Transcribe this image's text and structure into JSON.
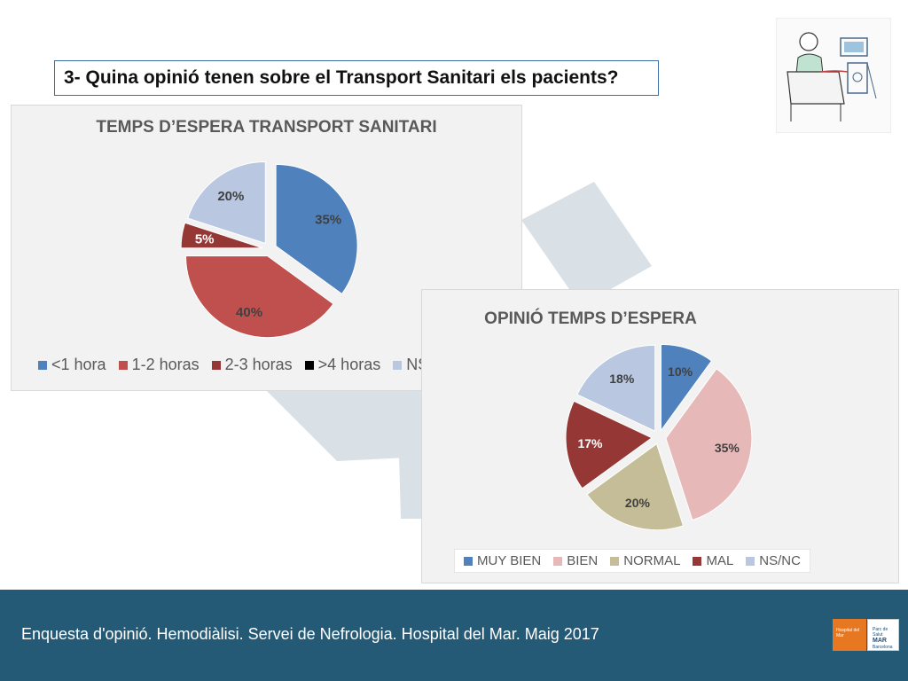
{
  "question": "3- Quina opinió tenen sobre el Transport Sanitari els pacients?",
  "footer_text": "Enquesta d'opinió. Hemodiàlisi. Servei de Nefrologia. Hospital del Mar.  Maig 2017",
  "logos": {
    "hospital": "Hospital del Mar",
    "parc_line1": "Parc de Salut",
    "parc_line2": "MAR",
    "parc_line3": "Barcelona"
  },
  "colors": {
    "footer_bg": "#255a77",
    "chart_bg": "#f2f2f2",
    "logo_orange": "#e87722"
  },
  "chart_data": [
    {
      "type": "pie",
      "title": "TEMPS D’ESPERA TRANSPORT SANITARI",
      "categories": [
        "<1 hora",
        "1-2 horas",
        "2-3 horas",
        ">4 horas",
        "NS/NC"
      ],
      "values": [
        35,
        40,
        5,
        0,
        20
      ],
      "labels": [
        "35%",
        "40%",
        "5%",
        "",
        "20%"
      ],
      "colors": [
        "#4f81bd",
        "#c0504d",
        "#953735",
        "#000000",
        "#b9c7e1"
      ],
      "exploded": true,
      "legend_position": "bottom"
    },
    {
      "type": "pie",
      "title": "OPINIÓ TEMPS D’ESPERA",
      "categories": [
        "MUY BIEN",
        "BIEN",
        "NORMAL",
        "MAL",
        "NS/NC"
      ],
      "values": [
        10,
        35,
        20,
        17,
        18
      ],
      "labels": [
        "10%",
        "35%",
        "20%",
        "17%",
        "18%"
      ],
      "colors": [
        "#4f81bd",
        "#e6b9b8",
        "#c4bd97",
        "#953735",
        "#b9c7e1"
      ],
      "exploded": true,
      "legend_position": "bottom"
    }
  ]
}
